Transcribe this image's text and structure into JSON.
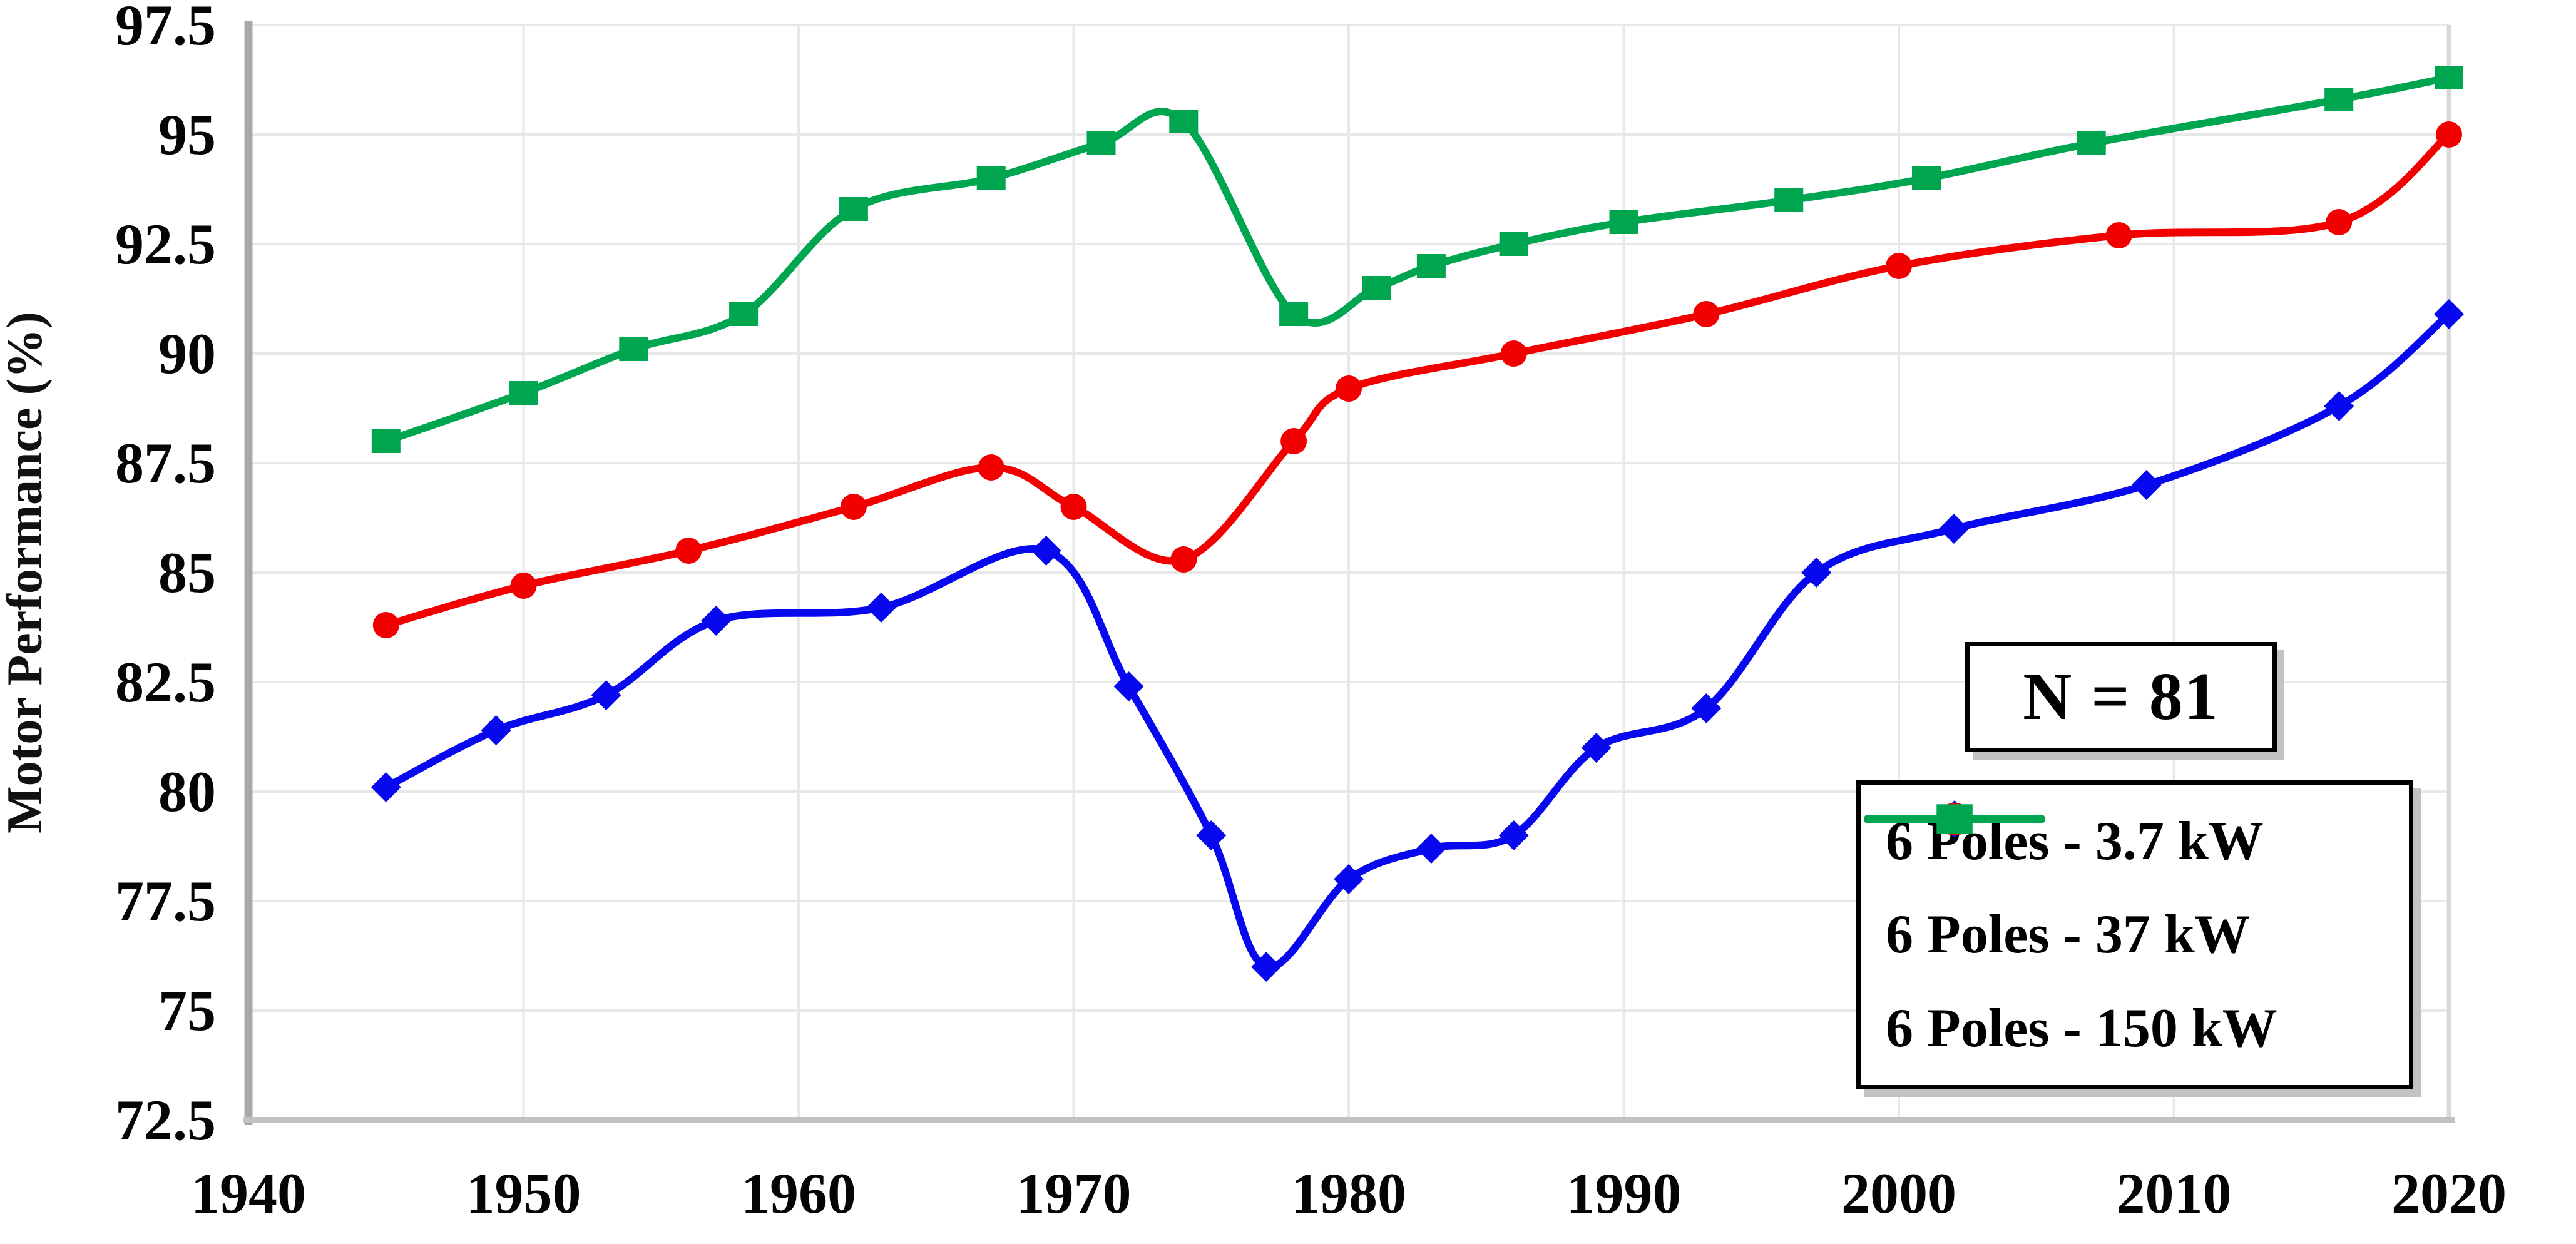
{
  "chart_data": {
    "type": "line",
    "title": "",
    "xlabel": "",
    "ylabel": "Motor Performance (%)",
    "xlim": [
      1940,
      2020
    ],
    "ylim": [
      72.5,
      97.5
    ],
    "x_ticks": [
      1940,
      1950,
      1960,
      1970,
      1980,
      1990,
      2000,
      2010,
      2020
    ],
    "y_ticks": [
      72.5,
      75,
      77.5,
      80,
      82.5,
      85,
      87.5,
      90,
      92.5,
      95,
      97.5
    ],
    "y_tick_labels": [
      "72.5",
      "75",
      "77.5",
      "80",
      "82.5",
      "85",
      "87.5",
      "90",
      "92.5",
      "95",
      "97.5"
    ],
    "grid": true,
    "legend_position": "lower-right",
    "series": [
      {
        "name": "6 Poles - 3.7 kW",
        "color": "#0808ee",
        "marker": "diamond",
        "x": [
          1945,
          1949,
          1953,
          1957,
          1963,
          1969,
          1972,
          1975,
          1977,
          1980,
          1983,
          1986,
          1989,
          1993,
          1997,
          2002,
          2009,
          2016,
          2020
        ],
        "y": [
          80.1,
          81.4,
          82.2,
          83.9,
          84.2,
          85.5,
          82.4,
          79.0,
          76.0,
          78.0,
          78.7,
          79.0,
          81.0,
          81.9,
          85.0,
          86.0,
          87.0,
          88.8,
          90.9
        ]
      },
      {
        "name": "6 Poles - 37 kW",
        "color": "#f20000",
        "marker": "circle",
        "x": [
          1945,
          1950,
          1956,
          1962,
          1967,
          1970,
          1974,
          1978,
          1980,
          1986,
          1993,
          2000,
          2008,
          2016,
          2020
        ],
        "y": [
          83.8,
          84.7,
          85.5,
          86.5,
          87.4,
          86.5,
          85.3,
          88.0,
          89.2,
          90.0,
          90.9,
          92.0,
          92.7,
          93.0,
          95.0
        ]
      },
      {
        "name": "6 Poles - 150 kW",
        "color": "#00a64f",
        "marker": "square",
        "x": [
          1945,
          1950,
          1954,
          1958,
          1962,
          1967,
          1971,
          1974,
          1978,
          1981,
          1983,
          1986,
          1990,
          1996,
          2001,
          2007,
          2016,
          2020
        ],
        "y": [
          88.0,
          89.1,
          90.1,
          90.9,
          93.3,
          94.0,
          94.8,
          95.3,
          90.9,
          91.5,
          92.0,
          92.5,
          93.0,
          93.5,
          94.0,
          94.8,
          95.8,
          96.3
        ]
      }
    ]
  },
  "annotation": {
    "text": "N = 81"
  },
  "style": {
    "grid_color": "#e8e8e8",
    "y_axis_color": "#a8a8a8",
    "x_axis_color": "#c2c2c2",
    "right_frame_color": "#d9d9d9",
    "text_color": "#050505"
  }
}
